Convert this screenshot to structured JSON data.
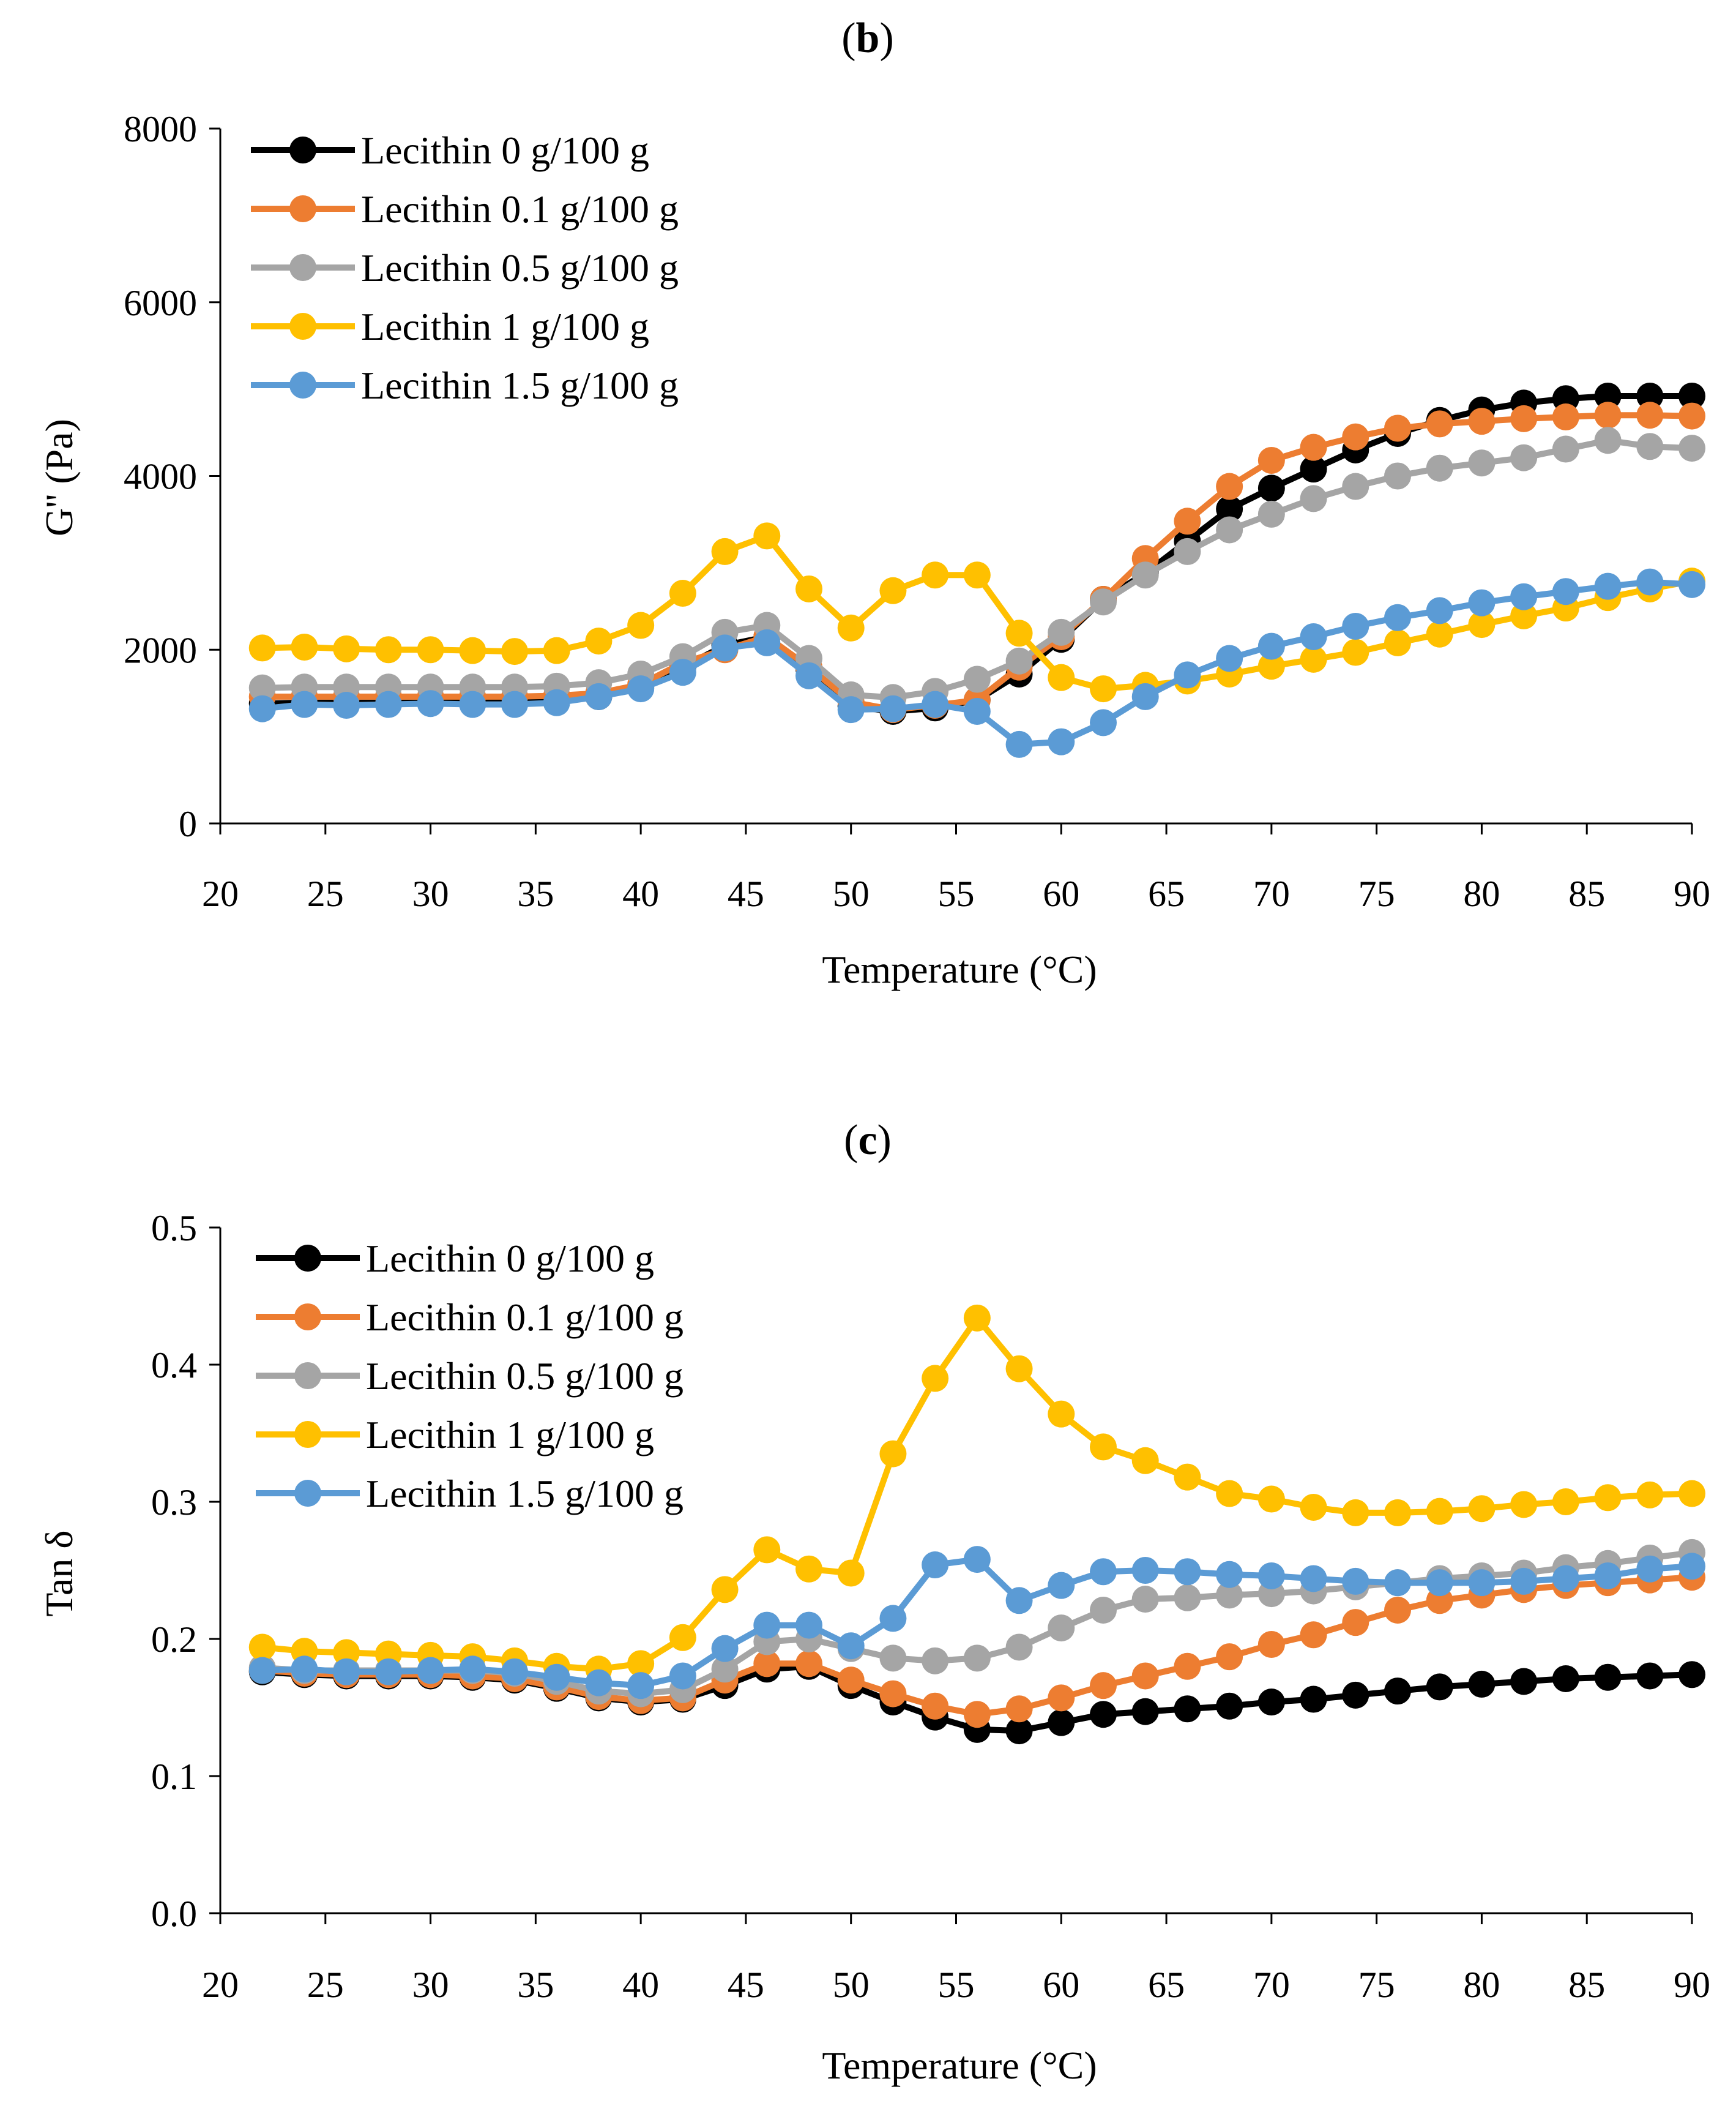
{
  "chart_data": [
    {
      "type": "line",
      "panel": "b",
      "title": "",
      "xlabel": "Temperature (°C)",
      "ylabel": "G'' (Pa)",
      "xlim": [
        20,
        90
      ],
      "ylim": [
        0,
        8000
      ],
      "xticks": [
        20,
        25,
        30,
        35,
        40,
        45,
        50,
        55,
        60,
        65,
        70,
        75,
        80,
        85,
        90
      ],
      "yticks": [
        0,
        2000,
        4000,
        6000,
        8000
      ],
      "ytick_labels": [
        "0",
        "2000",
        "4000",
        "6000",
        "8000"
      ],
      "grid": false,
      "legend_position": "top-left",
      "x": [
        22,
        24,
        26,
        28,
        30,
        32,
        34,
        36,
        38,
        40,
        42,
        44,
        46,
        48,
        50,
        52,
        54,
        56,
        58,
        60,
        62,
        64,
        66,
        68,
        70,
        72,
        74,
        76,
        78,
        80,
        82,
        84,
        86,
        88,
        90
      ],
      "series": [
        {
          "name": "Lecithin 0 g/100 g",
          "color": "#000000",
          "values": [
            1380,
            1390,
            1390,
            1390,
            1390,
            1400,
            1400,
            1420,
            1460,
            1560,
            1800,
            2050,
            2150,
            1780,
            1350,
            1290,
            1330,
            1420,
            1720,
            2120,
            2580,
            2880,
            3250,
            3620,
            3860,
            4080,
            4300,
            4490,
            4640,
            4760,
            4840,
            4890,
            4920,
            4920,
            4920
          ]
        },
        {
          "name": "Lecithin 0.1 g/100 g",
          "color": "#ED7D31",
          "values": [
            1460,
            1460,
            1460,
            1460,
            1460,
            1460,
            1460,
            1470,
            1500,
            1600,
            1850,
            2000,
            2150,
            1800,
            1400,
            1310,
            1360,
            1420,
            1800,
            2150,
            2580,
            3050,
            3480,
            3880,
            4180,
            4330,
            4450,
            4550,
            4600,
            4630,
            4660,
            4680,
            4700,
            4700,
            4690
          ]
        },
        {
          "name": "Lecithin 0.5 g/100 g",
          "color": "#A5A5A5",
          "values": [
            1560,
            1570,
            1570,
            1570,
            1570,
            1570,
            1570,
            1580,
            1620,
            1720,
            1920,
            2200,
            2280,
            1900,
            1480,
            1450,
            1520,
            1660,
            1870,
            2200,
            2550,
            2860,
            3130,
            3380,
            3560,
            3740,
            3880,
            4000,
            4090,
            4150,
            4210,
            4310,
            4410,
            4340,
            4320
          ]
        },
        {
          "name": "Lecithin 1 g/100 g",
          "color": "#FFC000",
          "values": [
            2020,
            2030,
            2010,
            2000,
            2000,
            1990,
            1980,
            1990,
            2100,
            2280,
            2650,
            3130,
            3310,
            2700,
            2250,
            2680,
            2860,
            2860,
            2190,
            1680,
            1550,
            1590,
            1640,
            1720,
            1810,
            1890,
            1970,
            2080,
            2180,
            2290,
            2390,
            2480,
            2600,
            2700,
            2790
          ]
        },
        {
          "name": "Lecithin 1.5 g/100 g",
          "color": "#5B9BD5",
          "values": [
            1320,
            1370,
            1360,
            1370,
            1380,
            1370,
            1370,
            1390,
            1460,
            1550,
            1740,
            2020,
            2080,
            1700,
            1310,
            1320,
            1370,
            1290,
            910,
            940,
            1160,
            1460,
            1710,
            1900,
            2040,
            2150,
            2270,
            2370,
            2450,
            2540,
            2610,
            2670,
            2730,
            2780,
            2750
          ]
        }
      ]
    },
    {
      "type": "line",
      "panel": "c",
      "title": "",
      "xlabel": "Temperature (°C)",
      "ylabel": "Tan δ",
      "xlim": [
        20,
        90
      ],
      "ylim": [
        0,
        0.5
      ],
      "xticks": [
        20,
        25,
        30,
        35,
        40,
        45,
        50,
        55,
        60,
        65,
        70,
        75,
        80,
        85,
        90
      ],
      "yticks": [
        0,
        0.1,
        0.2,
        0.3,
        0.4,
        0.5
      ],
      "ytick_labels": [
        "0.0",
        "0.1",
        "0.2",
        "0.3",
        "0.4",
        "0.5"
      ],
      "grid": false,
      "legend_position": "top-left",
      "x": [
        22,
        24,
        26,
        28,
        30,
        32,
        34,
        36,
        38,
        40,
        42,
        44,
        46,
        48,
        50,
        52,
        54,
        56,
        58,
        60,
        62,
        64,
        66,
        68,
        70,
        72,
        74,
        76,
        78,
        80,
        82,
        84,
        86,
        88,
        90
      ],
      "series": [
        {
          "name": "Lecithin 0 g/100 g",
          "color": "#000000",
          "values": [
            0.176,
            0.174,
            0.173,
            0.173,
            0.173,
            0.172,
            0.17,
            0.164,
            0.157,
            0.154,
            0.156,
            0.166,
            0.178,
            0.18,
            0.166,
            0.154,
            0.143,
            0.134,
            0.133,
            0.139,
            0.145,
            0.147,
            0.149,
            0.151,
            0.154,
            0.156,
            0.159,
            0.162,
            0.165,
            0.167,
            0.169,
            0.171,
            0.172,
            0.173,
            0.174
          ]
        },
        {
          "name": "Lecithin 0.1 g/100 g",
          "color": "#ED7D31",
          "values": [
            0.177,
            0.175,
            0.174,
            0.174,
            0.174,
            0.173,
            0.171,
            0.165,
            0.158,
            0.155,
            0.157,
            0.17,
            0.182,
            0.182,
            0.17,
            0.16,
            0.151,
            0.145,
            0.149,
            0.157,
            0.166,
            0.173,
            0.18,
            0.187,
            0.196,
            0.203,
            0.212,
            0.221,
            0.228,
            0.232,
            0.236,
            0.239,
            0.241,
            0.243,
            0.245
          ]
        },
        {
          "name": "Lecithin 0.5 g/100 g",
          "color": "#A5A5A5",
          "values": [
            0.179,
            0.177,
            0.177,
            0.177,
            0.177,
            0.177,
            0.175,
            0.169,
            0.162,
            0.16,
            0.163,
            0.178,
            0.198,
            0.2,
            0.193,
            0.186,
            0.184,
            0.186,
            0.194,
            0.208,
            0.221,
            0.229,
            0.23,
            0.232,
            0.233,
            0.235,
            0.238,
            0.241,
            0.244,
            0.246,
            0.248,
            0.252,
            0.255,
            0.259,
            0.263
          ]
        },
        {
          "name": "Lecithin 1 g/100 g",
          "color": "#FFC000",
          "values": [
            0.194,
            0.191,
            0.19,
            0.189,
            0.188,
            0.187,
            0.184,
            0.18,
            0.178,
            0.182,
            0.201,
            0.236,
            0.265,
            0.251,
            0.248,
            0.335,
            0.39,
            0.434,
            0.397,
            0.364,
            0.34,
            0.33,
            0.318,
            0.306,
            0.302,
            0.296,
            0.292,
            0.292,
            0.293,
            0.295,
            0.298,
            0.3,
            0.303,
            0.305,
            0.306
          ]
        },
        {
          "name": "Lecithin 1.5 g/100 g",
          "color": "#5B9BD5",
          "values": [
            0.177,
            0.178,
            0.176,
            0.176,
            0.177,
            0.178,
            0.176,
            0.172,
            0.168,
            0.166,
            0.173,
            0.193,
            0.21,
            0.21,
            0.195,
            0.215,
            0.254,
            0.258,
            0.228,
            0.239,
            0.249,
            0.25,
            0.249,
            0.247,
            0.246,
            0.244,
            0.242,
            0.241,
            0.241,
            0.241,
            0.242,
            0.244,
            0.246,
            0.251,
            0.253
          ]
        }
      ]
    }
  ]
}
